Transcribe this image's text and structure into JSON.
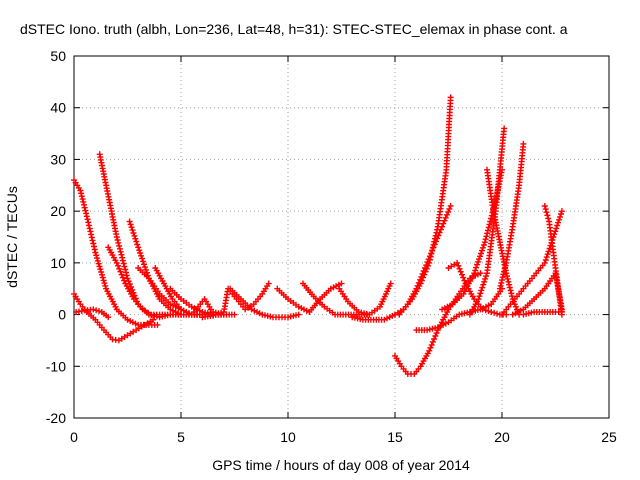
{
  "chart_data": {
    "type": "scatter",
    "title": "dSTEC Iono. truth (albh, Lon=236, Lat=48, h=31): STEC-STEC_elemax in phase cont. a",
    "xlabel": "GPS time / hours of day 008 of year 2014",
    "ylabel": "dSTEC  / TECUs",
    "xlim": [
      0,
      25
    ],
    "ylim": [
      -20,
      50
    ],
    "xticks": [
      "0",
      "5",
      "10",
      "15",
      "20",
      "25"
    ],
    "yticks": [
      "-20",
      "-10",
      "0",
      "10",
      "20",
      "30",
      "40",
      "50"
    ],
    "grid": true,
    "marker": "+",
    "color": "#ff0000",
    "series": [
      {
        "x": [
          0.0,
          0.3,
          0.6,
          1.0,
          1.5,
          2.0,
          2.5,
          3.0,
          3.5,
          3.9
        ],
        "y": [
          26,
          24,
          19,
          12,
          5,
          1,
          -1,
          -2,
          -2,
          -2
        ]
      },
      {
        "x": [
          0.0,
          0.3,
          0.6,
          1.0,
          1.4,
          1.8,
          2.1,
          2.5,
          2.9,
          3.3,
          3.7
        ],
        "y": [
          4,
          2,
          0.5,
          -1,
          -3,
          -4.8,
          -5,
          -4,
          -3,
          -2,
          -1
        ]
      },
      {
        "x": [
          0.1,
          0.5,
          0.9,
          1.3,
          1.6
        ],
        "y": [
          0.5,
          0.8,
          1,
          0.5,
          -0.5
        ]
      },
      {
        "x": [
          1.2,
          1.5,
          2.0,
          2.5,
          3.0,
          3.5,
          4.0,
          4.5,
          5.0,
          5.5,
          6.0
        ],
        "y": [
          31,
          25,
          15,
          7,
          2,
          0,
          -0.5,
          0,
          0,
          0,
          0
        ]
      },
      {
        "x": [
          1.6,
          2.0,
          2.4,
          2.8,
          3.2,
          3.6,
          4.0,
          4.5,
          5.0
        ],
        "y": [
          13,
          10,
          6,
          3,
          1,
          0,
          0,
          0,
          0
        ]
      },
      {
        "x": [
          2.6,
          3.0,
          3.5,
          4.0,
          4.5,
          5.0,
          5.5,
          6.0,
          6.5,
          7.0,
          7.5
        ],
        "y": [
          18,
          13,
          7,
          3,
          1,
          0,
          0,
          0,
          0.5,
          0,
          0
        ]
      },
      {
        "x": [
          3.0,
          3.5,
          4.0,
          4.5,
          5.0,
          5.5,
          6.0,
          6.5,
          7.0
        ],
        "y": [
          9,
          7,
          4,
          2,
          1,
          0,
          0,
          0,
          0
        ]
      },
      {
        "x": [
          3.8,
          4.2,
          4.6,
          5.0,
          5.5,
          6.0,
          6.5
        ],
        "y": [
          9,
          6,
          3,
          1,
          0,
          0,
          0
        ]
      },
      {
        "x": [
          4.5,
          5.0,
          5.5,
          6.0,
          6.5,
          7.0
        ],
        "y": [
          5,
          3,
          1.5,
          0.5,
          0,
          0
        ]
      },
      {
        "x": [
          5.5,
          5.8,
          6.1,
          6.4
        ],
        "y": [
          0,
          1.5,
          3,
          1
        ]
      },
      {
        "x": [
          6.0,
          6.5,
          7.0,
          7.2,
          7.6,
          8.0,
          8.4,
          8.8,
          9.1
        ],
        "y": [
          -0.5,
          -0.2,
          0.5,
          5,
          3,
          1,
          2,
          4,
          6
        ]
      },
      {
        "x": [
          7.3,
          7.8,
          8.3,
          8.8,
          9.3,
          10.0,
          10.5
        ],
        "y": [
          5,
          3,
          1,
          0,
          -0.5,
          -0.5,
          0
        ]
      },
      {
        "x": [
          9.5,
          10.0,
          10.5,
          11.0,
          11.5,
          12.0,
          12.5
        ],
        "y": [
          5,
          3,
          1.5,
          0.5,
          3,
          5,
          6
        ]
      },
      {
        "x": [
          10.7,
          11.2,
          11.7,
          12.2,
          12.7,
          13.2,
          13.7
        ],
        "y": [
          6,
          3.5,
          1.5,
          0,
          0,
          0,
          0
        ]
      },
      {
        "x": [
          12.4,
          12.8,
          13.3,
          13.8,
          14.3,
          14.8
        ],
        "y": [
          5,
          2.5,
          0.5,
          0,
          1.5,
          6
        ]
      },
      {
        "x": [
          13.0,
          13.5,
          14.0,
          14.5,
          15.0
        ],
        "y": [
          -0.5,
          -1,
          -1,
          -1,
          0
        ]
      },
      {
        "x": [
          15.0,
          15.4,
          15.8,
          16.2,
          16.6,
          17.0,
          17.4,
          17.6
        ],
        "y": [
          0,
          1,
          3,
          6,
          10,
          17,
          28,
          42
        ]
      },
      {
        "x": [
          15.2,
          15.6,
          16.0,
          16.4,
          16.8,
          17.2,
          17.6
        ],
        "y": [
          0,
          2,
          5,
          9,
          13,
          17,
          21
        ]
      },
      {
        "x": [
          15.0,
          15.3,
          15.6,
          15.9,
          16.2,
          16.6,
          17.0,
          17.5,
          18.0,
          18.5,
          19.0
        ],
        "y": [
          -8,
          -10,
          -11.5,
          -11.5,
          -10,
          -7,
          -3,
          1,
          4,
          7,
          8
        ]
      },
      {
        "x": [
          16.0,
          16.5,
          17.0,
          17.5,
          18.0,
          18.5,
          19.0,
          19.5,
          20.0
        ],
        "y": [
          -3,
          -3,
          -2.5,
          -1.5,
          0,
          0.5,
          1,
          2,
          5
        ]
      },
      {
        "x": [
          17.5,
          17.9,
          18.3,
          18.7,
          19.1,
          19.5,
          19.9,
          20.2
        ],
        "y": [
          9,
          10,
          6,
          3,
          1,
          0.5,
          0,
          0
        ]
      },
      {
        "x": [
          17.2,
          17.7,
          18.2,
          18.7,
          19.2,
          19.7,
          20.0
        ],
        "y": [
          1,
          2,
          4,
          8,
          14,
          22,
          28
        ]
      },
      {
        "x": [
          18.5,
          18.9,
          19.3,
          19.7,
          20.1
        ],
        "y": [
          0,
          3,
          8,
          20,
          36
        ]
      },
      {
        "x": [
          19.3,
          19.6,
          19.9,
          20.2,
          20.5,
          20.8
        ],
        "y": [
          28,
          20,
          14,
          8,
          3,
          0
        ]
      },
      {
        "x": [
          19.9,
          20.2,
          20.5,
          20.8,
          21.0
        ],
        "y": [
          5,
          10,
          17,
          25,
          33
        ]
      },
      {
        "x": [
          20.0,
          20.4,
          20.8,
          21.2,
          21.6,
          22.0,
          22.4,
          22.8
        ],
        "y": [
          0,
          2,
          4,
          6,
          8,
          10,
          15,
          20
        ]
      },
      {
        "x": [
          20.5,
          21.0,
          21.5,
          22.0,
          22.5,
          22.8
        ],
        "y": [
          0,
          1,
          3,
          5,
          8,
          1
        ]
      },
      {
        "x": [
          22.0,
          22.2,
          22.4,
          22.6,
          22.8
        ],
        "y": [
          21,
          18,
          12,
          6,
          0
        ]
      },
      {
        "x": [
          21.0,
          21.5,
          22.0,
          22.5,
          22.8
        ],
        "y": [
          0,
          0.5,
          0.5,
          0.5,
          0.5
        ]
      }
    ]
  }
}
